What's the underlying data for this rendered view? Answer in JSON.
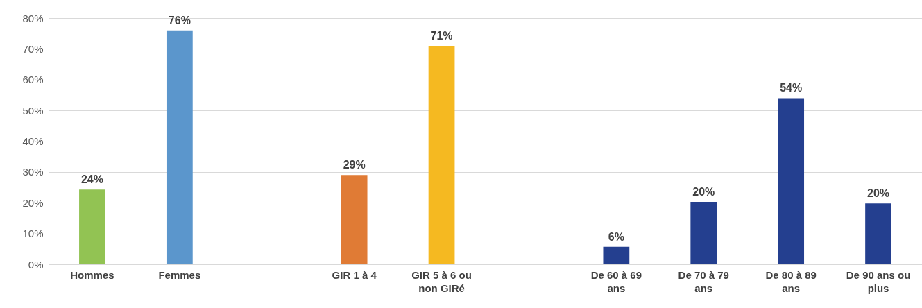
{
  "chart_data": {
    "type": "bar",
    "categories": [
      "Hommes",
      "Femmes",
      null,
      "GIR 1 à 4",
      "GIR 5 à 6 ou non GIRé",
      null,
      "De 60 à 69 ans",
      "De 70 à 79 ans",
      "De 80 à 89 ans",
      "De 90 ans ou plus"
    ],
    "values": [
      24.3,
      76,
      null,
      29,
      71,
      null,
      5.7,
      20.3,
      54,
      19.8
    ],
    "value_labels": [
      "24%",
      "76%",
      null,
      "29%",
      "71%",
      null,
      "6%",
      "20%",
      "54%",
      "20%"
    ],
    "colors": [
      "#92c353",
      "#5b96cc",
      "#ffffff",
      "#e07b35",
      "#f5b921",
      "#ffffff",
      "#243f8f",
      "#243f8f",
      "#243f8f",
      "#243f8f"
    ],
    "ylim": [
      0,
      80
    ],
    "yticks": [
      {
        "value": 0,
        "label": "0%"
      },
      {
        "value": 10,
        "label": "10%"
      },
      {
        "value": 20,
        "label": "20%"
      },
      {
        "value": 30,
        "label": "30%"
      },
      {
        "value": 40,
        "label": "40%"
      },
      {
        "value": 50,
        "label": "50%"
      },
      {
        "value": 60,
        "label": "60%"
      },
      {
        "value": 70,
        "label": "70%"
      },
      {
        "value": 80,
        "label": "80%"
      }
    ],
    "grid": true
  }
}
